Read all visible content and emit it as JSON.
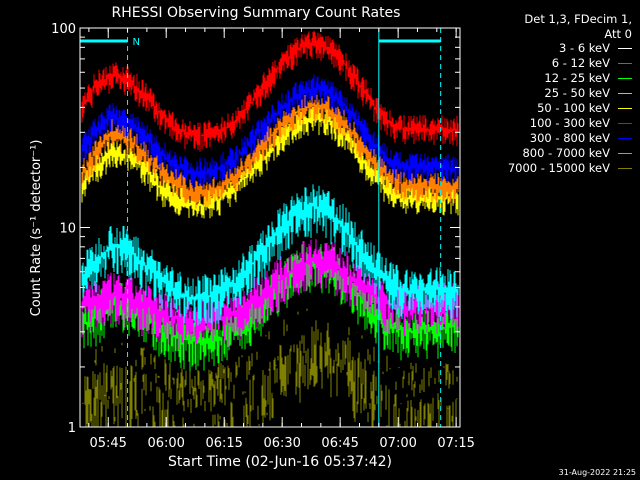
{
  "chart_data": {
    "type": "line",
    "title": "RHESSI Observing Summary Count Rates",
    "xlabel": "Start Time (02-Jun-16 05:37:42)",
    "ylabel": "Count Rate (s⁻¹ detector⁻¹)",
    "yscale": "log",
    "ylim": [
      1,
      100
    ],
    "xlim": [
      "05:37:42",
      "07:16:00"
    ],
    "x_ticks": [
      "05:45",
      "06:00",
      "06:15",
      "06:30",
      "06:45",
      "07:00",
      "07:15"
    ],
    "y_ticks": [
      "1",
      "10",
      "100"
    ],
    "x_times": [
      "05:38",
      "05:42",
      "05:46",
      "05:50",
      "05:54",
      "05:58",
      "06:02",
      "06:06",
      "06:10",
      "06:14",
      "06:18",
      "06:22",
      "06:26",
      "06:30",
      "06:34",
      "06:38",
      "06:42",
      "06:46",
      "06:50",
      "06:54",
      "06:58",
      "07:02",
      "07:06",
      "07:10",
      "07:14"
    ],
    "series": [
      {
        "name": "3 - 6 keV",
        "color": "#000000",
        "values": [
          1.8,
          2.0,
          2.2,
          2.1,
          1.9,
          1.6,
          1.3,
          1.1,
          1.1,
          1.2,
          1.4,
          1.8,
          2.3,
          2.8,
          3.3,
          3.6,
          3.5,
          3.0,
          2.4,
          1.9,
          1.6,
          1.4,
          1.4,
          1.5,
          1.5
        ]
      },
      {
        "name": "6 - 12 keV",
        "color": "#ff00ff",
        "values": [
          4.0,
          4.3,
          4.6,
          4.4,
          4.1,
          3.8,
          3.5,
          3.4,
          3.4,
          3.5,
          3.7,
          4.2,
          4.8,
          5.6,
          6.4,
          7.0,
          6.9,
          6.0,
          5.2,
          4.5,
          4.1,
          4.0,
          4.1,
          4.1,
          4.2
        ]
      },
      {
        "name": "12 - 25 keV",
        "color": "#00ff00",
        "values": [
          3.2,
          3.6,
          4.2,
          4.0,
          3.6,
          3.2,
          2.9,
          2.7,
          2.7,
          2.8,
          3.1,
          3.6,
          4.3,
          5.2,
          6.2,
          6.8,
          6.5,
          5.6,
          4.5,
          3.7,
          3.2,
          3.0,
          3.1,
          3.1,
          3.2
        ]
      },
      {
        "name": "25 - 50 keV",
        "color": "#00ffff",
        "values": [
          5.5,
          6.8,
          8.2,
          7.8,
          6.6,
          5.6,
          4.8,
          4.5,
          4.5,
          4.7,
          5.3,
          6.4,
          8.0,
          10.0,
          11.8,
          12.8,
          12.0,
          10.0,
          7.8,
          6.2,
          5.2,
          4.8,
          4.8,
          4.9,
          4.9
        ]
      },
      {
        "name": "50 - 100 keV",
        "color": "#ffff00",
        "values": [
          16,
          20,
          24,
          23,
          20,
          16,
          14,
          13,
          13,
          14,
          16,
          19,
          23,
          28,
          33,
          36,
          34,
          29,
          23,
          18,
          15,
          14,
          14,
          14,
          14
        ]
      },
      {
        "name": "100 - 300 keV",
        "color": "#ff0000",
        "values": [
          40,
          52,
          58,
          55,
          47,
          38,
          32,
          29,
          29,
          30,
          34,
          42,
          53,
          66,
          78,
          85,
          80,
          66,
          52,
          40,
          33,
          31,
          31,
          31,
          31
        ]
      },
      {
        "name": "300 - 800 keV",
        "color": "#0000ff",
        "values": [
          24,
          31,
          36,
          34,
          29,
          24,
          21,
          19,
          19,
          20,
          22,
          27,
          33,
          40,
          46,
          50,
          48,
          41,
          33,
          26,
          21,
          20,
          20,
          20,
          20
        ]
      },
      {
        "name": "800 - 7000 keV",
        "color": "#ff8000",
        "values": [
          18,
          24,
          30,
          28,
          24,
          20,
          17,
          15,
          15,
          16,
          18,
          22,
          27,
          33,
          38,
          41,
          39,
          33,
          27,
          21,
          18,
          16,
          16,
          16,
          16
        ]
      },
      {
        "name": "7000 - 15000 keV",
        "color": "#808000",
        "values": [
          1.5,
          1.7,
          1.9,
          1.8,
          1.7,
          1.5,
          1.4,
          1.3,
          1.3,
          1.4,
          1.5,
          1.7,
          2.0,
          2.3,
          2.6,
          2.8,
          2.7,
          2.4,
          2.0,
          1.7,
          1.5,
          1.4,
          1.4,
          1.4,
          1.4
        ]
      }
    ],
    "annotations": {
      "night_segments": [
        [
          "05:37:42",
          "05:50:00"
        ],
        [
          "06:55:00",
          "07:11:00"
        ]
      ],
      "night_color": "#00ffff",
      "saa_label": "N",
      "dashed_markers": [
        "05:50:00",
        "07:11:00"
      ],
      "solid_marker": "06:55:00"
    },
    "legend": {
      "placement": "top-right",
      "header_lines": [
        "Det 1,3, FDecim 1,",
        "Att 0"
      ]
    }
  },
  "footer": {
    "timestamp": "31-Aug-2022 21:25"
  }
}
